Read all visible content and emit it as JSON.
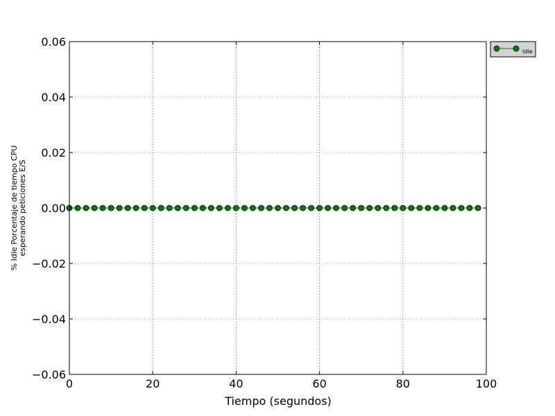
{
  "chart_data": {
    "type": "line",
    "title": "",
    "xlabel": "Tiempo (segundos)",
    "ylabel_lines": [
      "% Idle Porcentaje de tiempo CPU",
      "esperando peticiones E/S"
    ],
    "xlim": [
      0,
      100
    ],
    "ylim": [
      -0.06,
      0.06
    ],
    "xticks": [
      0,
      20,
      40,
      60,
      80,
      100
    ],
    "yticks": [
      -0.06,
      -0.04,
      -0.02,
      0.0,
      0.02,
      0.04,
      0.06
    ],
    "xtick_labels": [
      "0",
      "20",
      "40",
      "60",
      "80",
      "100"
    ],
    "ytick_labels": [
      "−0.06",
      "−0.04",
      "−0.02",
      "0.00",
      "0.02",
      "0.04",
      "0.06"
    ],
    "grid": true,
    "legend": {
      "placement": "outside-top-right",
      "entries": [
        "Idle"
      ]
    },
    "series": [
      {
        "name": "Idle",
        "color": "#008000",
        "marker": "circle",
        "x": [
          0,
          2,
          4,
          6,
          8,
          10,
          12,
          14,
          16,
          18,
          20,
          22,
          24,
          26,
          28,
          30,
          32,
          34,
          36,
          38,
          40,
          42,
          44,
          46,
          48,
          50,
          52,
          54,
          56,
          58,
          60,
          62,
          64,
          66,
          68,
          70,
          72,
          74,
          76,
          78,
          80,
          82,
          84,
          86,
          88,
          90,
          92,
          94,
          96,
          98
        ],
        "values": [
          0,
          0,
          0,
          0,
          0,
          0,
          0,
          0,
          0,
          0,
          0,
          0,
          0,
          0,
          0,
          0,
          0,
          0,
          0,
          0,
          0,
          0,
          0,
          0,
          0,
          0,
          0,
          0,
          0,
          0,
          0,
          0,
          0,
          0,
          0,
          0,
          0,
          0,
          0,
          0,
          0,
          0,
          0,
          0,
          0,
          0,
          0,
          0,
          0,
          0
        ]
      }
    ]
  }
}
